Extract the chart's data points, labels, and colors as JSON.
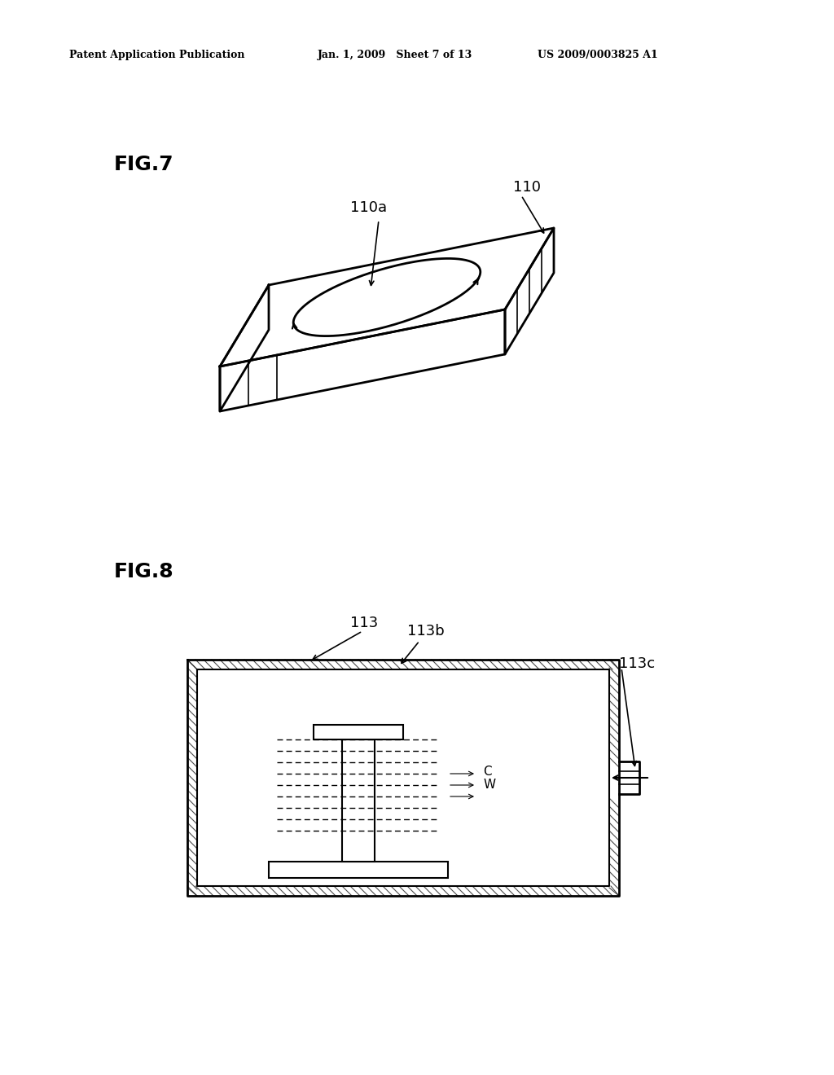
{
  "bg_color": "#ffffff",
  "text_color": "#000000",
  "header_left": "Patent Application Publication",
  "header_mid": "Jan. 1, 2009   Sheet 7 of 13",
  "header_right": "US 2009/0003825 A1",
  "fig7_label": "FIG.7",
  "fig8_label": "FIG.8",
  "label_110": "110",
  "label_110a": "110a",
  "label_113": "113",
  "label_113b": "113b",
  "label_113c": "113c",
  "label_C": "C",
  "label_W": "W"
}
